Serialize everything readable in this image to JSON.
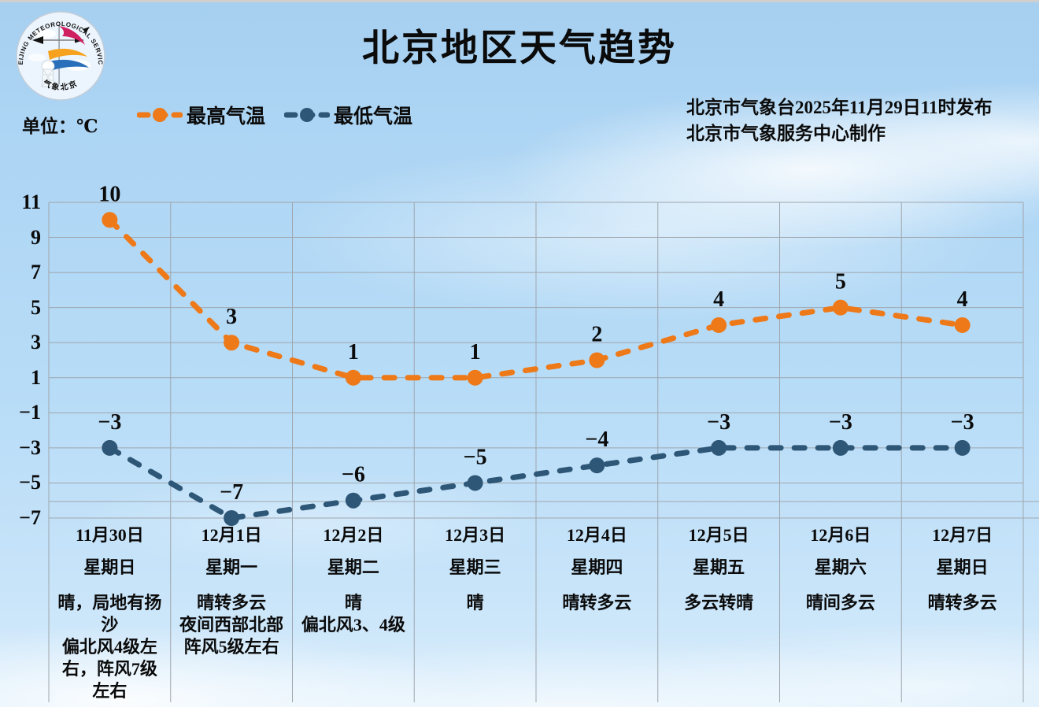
{
  "header": {
    "title": "北京地区天气趋势",
    "unit_label": "单位：℃",
    "issue_line1": "北京市气象台2025年11月29日11时发布",
    "issue_line2": "北京市气象服务中心制作",
    "logo": {
      "text_top": "BEIJING METEOROLOGICAL SERVICE",
      "text_bottom": "气象北京"
    }
  },
  "chart_data": {
    "type": "line",
    "line_style": "dashed-with-markers",
    "grid": true,
    "legend_position": "top-left",
    "categories": [
      "11月30日",
      "12月1日",
      "12月2日",
      "12月3日",
      "12月4日",
      "12月5日",
      "12月6日",
      "12月7日"
    ],
    "series": [
      {
        "name": "最高气温",
        "color": "#ee7918",
        "values": [
          10,
          3,
          1,
          1,
          2,
          4,
          5,
          4
        ]
      },
      {
        "name": "最低气温",
        "color": "#2e5777",
        "values": [
          -3,
          -7,
          -6,
          -5,
          -4,
          -3,
          -3,
          -3
        ]
      }
    ],
    "ylim": [
      -7,
      11
    ],
    "yticks": [
      11,
      9,
      7,
      5,
      3,
      1,
      -1,
      -3,
      -5,
      -7
    ],
    "xlabel": "",
    "ylabel": "℃"
  },
  "days": [
    {
      "date": "11月30日",
      "weekday": "星期日",
      "weather": [
        "晴，局地有扬沙",
        "偏北风4级左右，阵风7级左右"
      ]
    },
    {
      "date": "12月1日",
      "weekday": "星期一",
      "weather": [
        "晴转多云",
        "夜间西部北部阵风5级左右"
      ]
    },
    {
      "date": "12月2日",
      "weekday": "星期二",
      "weather": [
        "晴",
        "偏北风3、4级"
      ]
    },
    {
      "date": "12月3日",
      "weekday": "星期三",
      "weather": [
        "晴",
        ""
      ]
    },
    {
      "date": "12月4日",
      "weekday": "星期四",
      "weather": [
        "晴转多云",
        ""
      ]
    },
    {
      "date": "12月5日",
      "weekday": "星期五",
      "weather": [
        "多云转晴",
        ""
      ]
    },
    {
      "date": "12月6日",
      "weekday": "星期六",
      "weather": [
        "晴间多云",
        ""
      ]
    },
    {
      "date": "12月7日",
      "weekday": "星期日",
      "weather": [
        "晴转多云",
        ""
      ]
    }
  ],
  "colors": {
    "high_series": "#ee7918",
    "low_series": "#2e5777",
    "grid": "#9fa6ad",
    "text": "#0b0b0b",
    "sky_top": "#a6cff0",
    "sky_bottom": "#d7ecfb"
  }
}
